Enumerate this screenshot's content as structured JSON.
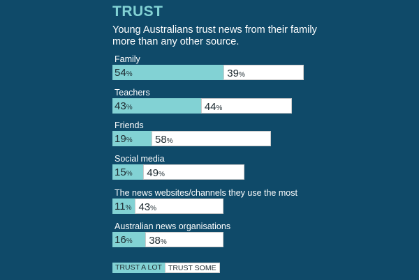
{
  "title": "TRUST",
  "subtitle": "Young Australians trust news from their family more than any other source.",
  "colors": {
    "background": "#0f4a69",
    "trust_a_lot": "#82d2d4",
    "trust_some": "#ffffff"
  },
  "chart_data": {
    "type": "bar",
    "orientation": "horizontal",
    "stacked": true,
    "title": "TRUST",
    "subtitle": "Young Australians trust news from their family more than any other source.",
    "categories": [
      "Family",
      "Teachers",
      "Friends",
      "Social media",
      "The news websites/channels they use the most",
      "Australian news organisations"
    ],
    "series": [
      {
        "name": "TRUST A LOT",
        "values": [
          54,
          43,
          19,
          15,
          11,
          16
        ]
      },
      {
        "name": "TRUST SOME",
        "values": [
          39,
          44,
          58,
          49,
          43,
          38
        ]
      }
    ],
    "unit": "%",
    "legend": "bottom-left",
    "grid": false
  }
}
